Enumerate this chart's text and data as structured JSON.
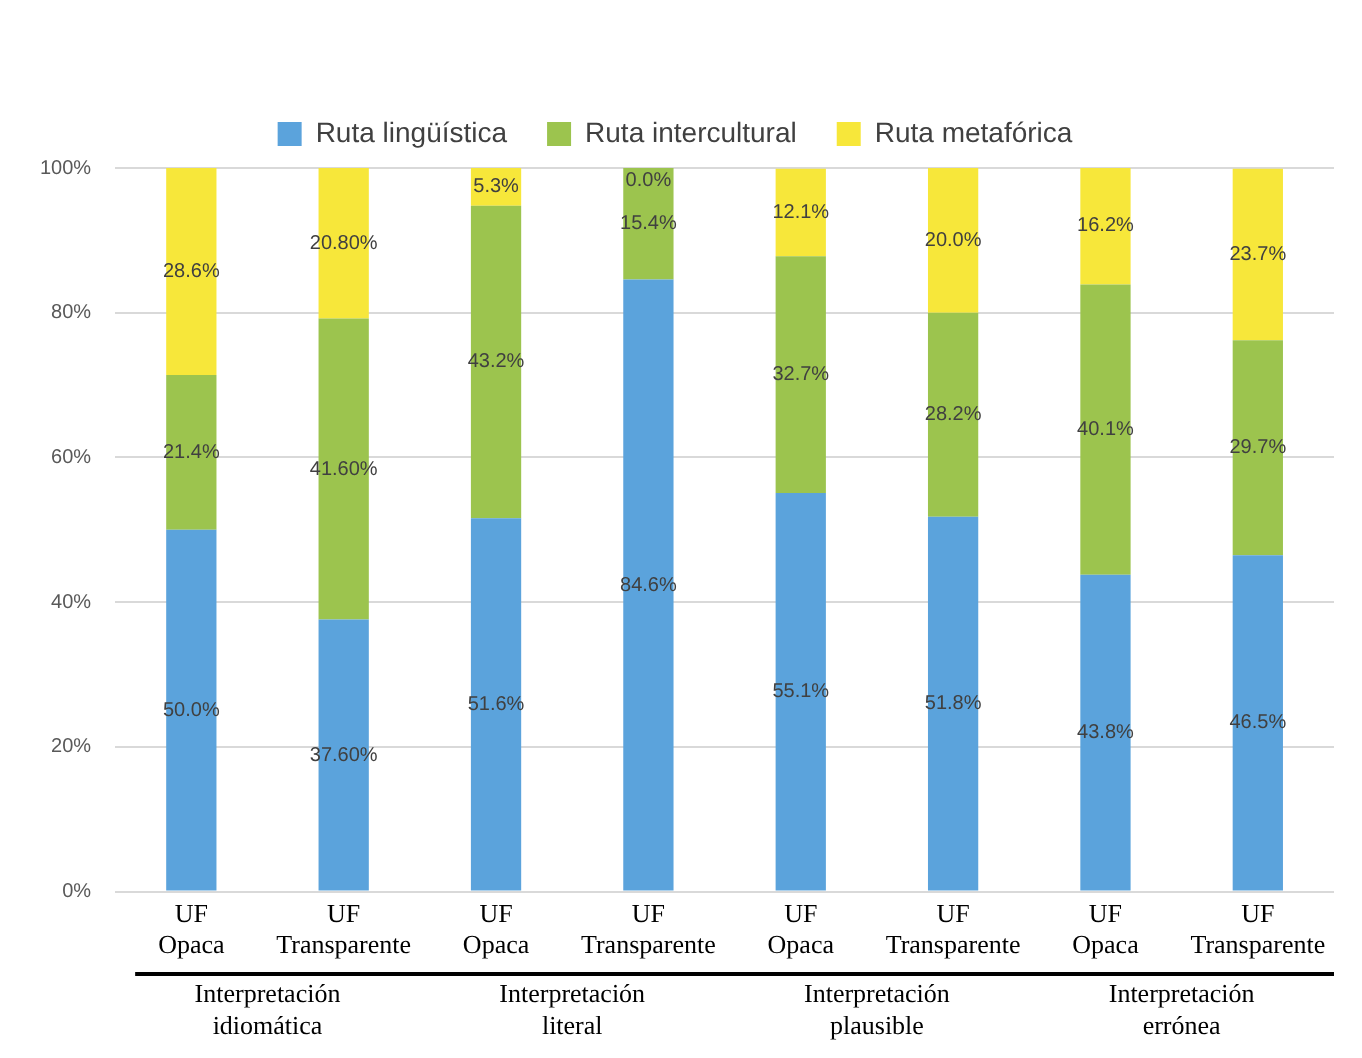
{
  "chart_data": {
    "type": "bar",
    "stacked": true,
    "categories": [
      "UF Opaca",
      "UF Transparente",
      "UF Opaca",
      "UF Transparente",
      "UF Opaca",
      "UF Transparente",
      "UF Opaca",
      "UF Transparente"
    ],
    "series": [
      {
        "name": "Ruta lingüística",
        "color": "#5ba3dc",
        "values": [
          50.0,
          37.6,
          51.6,
          84.6,
          55.1,
          51.8,
          43.8,
          46.5
        ],
        "value_labels": [
          "50.0%",
          "37.60%",
          "51.6%",
          "84.6%",
          "55.1%",
          "51.8%",
          "43.8%",
          "46.5%"
        ]
      },
      {
        "name": "Ruta intercultural",
        "color": "#9cc44e",
        "values": [
          21.4,
          41.6,
          43.2,
          15.4,
          32.7,
          28.2,
          40.1,
          29.7
        ],
        "value_labels": [
          "21.4%",
          "41.60%",
          "43.2%",
          "15.4%",
          "32.7%",
          "28.2%",
          "40.1%",
          "29.7%"
        ]
      },
      {
        "name": "Ruta metafórica",
        "color": "#f7e73a",
        "values": [
          28.6,
          20.8,
          5.3,
          0.0,
          12.1,
          20.0,
          16.2,
          23.7
        ],
        "value_labels": [
          "28.6%",
          "20.80%",
          "5.3%",
          "0.0%",
          "12.1%",
          "20.0%",
          "16.2%",
          "23.7%"
        ]
      }
    ],
    "ylim": [
      0,
      100
    ],
    "yticks": [
      {
        "value": 0,
        "label": "0%"
      },
      {
        "value": 20,
        "label": "20%"
      },
      {
        "value": 40,
        "label": "40%"
      },
      {
        "value": 60,
        "label": "60%"
      },
      {
        "value": 80,
        "label": "80%"
      },
      {
        "value": 100,
        "label": "100%"
      }
    ],
    "grid": "y",
    "legend": "top",
    "annotations": [
      "Interpretación idiomática",
      "Interpretación literal",
      "Interpretación plausible",
      "Interpretación errónea"
    ]
  }
}
